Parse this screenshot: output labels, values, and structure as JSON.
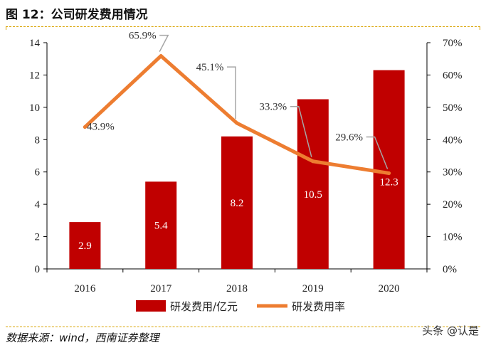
{
  "header": {
    "title": "图 12：公司研发费用情况"
  },
  "footer": {
    "source": "数据来源：wind，西南证券整理",
    "watermark": "头条 @认是"
  },
  "colors": {
    "bar": "#c00000",
    "line": "#ed7d31",
    "leader": "#a6a6a6"
  },
  "chart_data": {
    "type": "bar",
    "categories": [
      "2016",
      "2017",
      "2018",
      "2019",
      "2020"
    ],
    "series": [
      {
        "name": "研发费用/亿元",
        "type": "bar",
        "axis": "left",
        "values": [
          2.9,
          5.4,
          8.2,
          10.5,
          12.3
        ],
        "labels": [
          "2.9",
          "5.4",
          "8.2",
          "10.5",
          "12.3"
        ]
      },
      {
        "name": "研发费用率",
        "type": "line",
        "axis": "right",
        "values": [
          43.9,
          65.9,
          45.1,
          33.3,
          29.6
        ],
        "labels": [
          "43.9%",
          "65.9%",
          "45.1%",
          "33.3%",
          "29.6%"
        ]
      }
    ],
    "yleft": {
      "lim": [
        0,
        14
      ],
      "ticks": [
        "0",
        "2",
        "4",
        "6",
        "8",
        "10",
        "12",
        "14"
      ]
    },
    "yright": {
      "lim": [
        0,
        70
      ],
      "ticks": [
        "0%",
        "10%",
        "20%",
        "30%",
        "40%",
        "50%",
        "60%",
        "70%"
      ]
    },
    "grid": false,
    "legend": "bottom-center"
  }
}
